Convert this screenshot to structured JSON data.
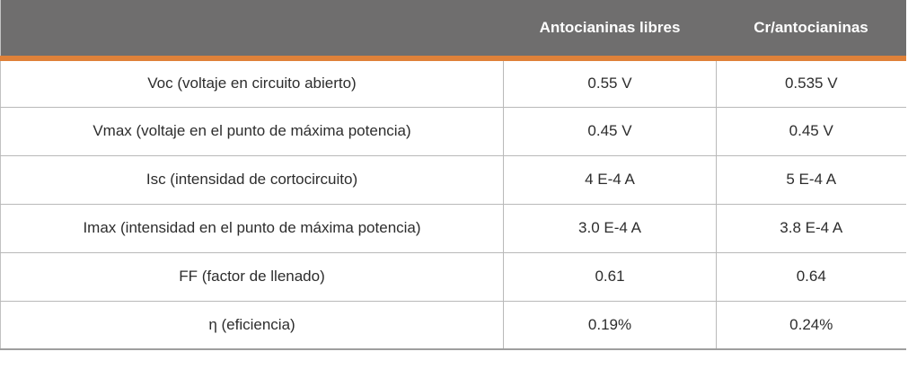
{
  "colors": {
    "header_bg": "#6f6e6e",
    "header_text": "#ffffff",
    "accent_orange": "#df8139",
    "cell_border": "#b9b9b9",
    "bottom_border": "#9e9e9e",
    "body_text": "#2d2d2d"
  },
  "chart_data": {
    "type": "table",
    "columns": [
      "",
      "Antocianinas libres",
      "Cr/antocianinas"
    ],
    "rows": [
      [
        "Voc (voltaje en circuito abierto)",
        "0.55 V",
        "0.535 V"
      ],
      [
        "Vmax (voltaje en el punto de máxima potencia)",
        "0.45 V",
        "0.45 V"
      ],
      [
        "Isc (intensidad de cortocircuito)",
        "4 E-4 A",
        "5 E-4 A"
      ],
      [
        "Imax (intensidad en el punto de máxima potencia)",
        "3.0 E-4 A",
        "3.8 E-4 A"
      ],
      [
        "FF (factor de llenado)",
        "0.61",
        "0.64"
      ],
      [
        "η (eficiencia)",
        "0.19%",
        "0.24%"
      ]
    ],
    "series": [
      {
        "name": "Antocianinas libres",
        "Voc_V": 0.55,
        "Vmax_V": 0.45,
        "Isc_A": 0.0004,
        "Imax_A": 0.0003,
        "FF": 0.61,
        "eficiencia_pct": 0.19
      },
      {
        "name": "Cr/antocianinas",
        "Voc_V": 0.535,
        "Vmax_V": 0.45,
        "Isc_A": 0.0005,
        "Imax_A": 0.00038,
        "FF": 0.64,
        "eficiencia_pct": 0.24
      }
    ],
    "layout": {
      "grid": "cell-borders",
      "header_accent": "orange-underline"
    }
  }
}
